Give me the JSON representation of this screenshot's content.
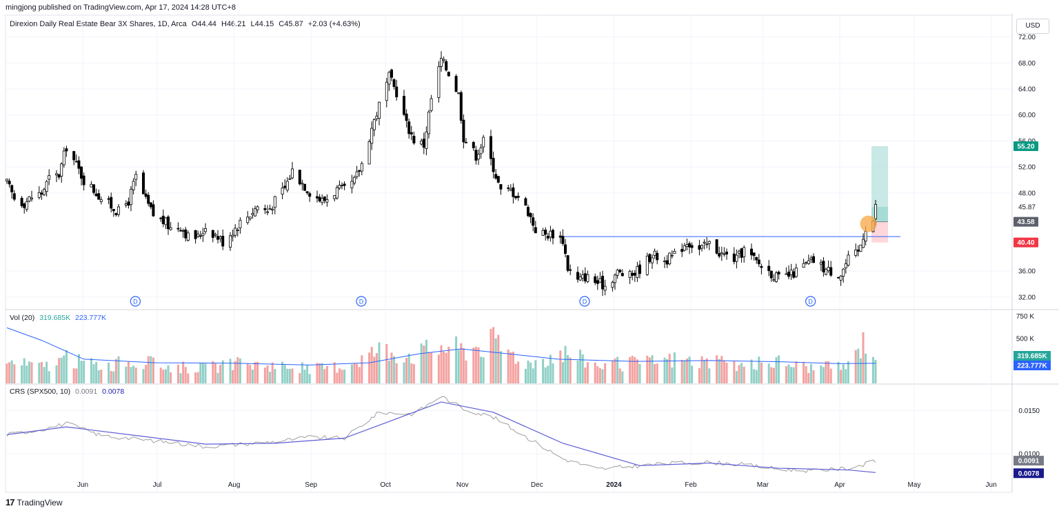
{
  "header": {
    "published": "mingjong published on TradingView.com, Apr 17, 2024 14:28 UTC+8"
  },
  "symbol_legend": {
    "name": "Direxion Daily Real Estate Bear 3X Shares, 1D, Arca",
    "open": "O44.44",
    "high": "H46.21",
    "low": "L44.15",
    "close": "C45.87",
    "change": "+2.03 (+4.63%)"
  },
  "currency_button": "USD",
  "volume_legend": {
    "label": "Vol (20)",
    "volume": "319.685K",
    "ma": "223.777K"
  },
  "crs_legend": {
    "label": "CRS (SPX500, 10)",
    "value": "0.0091",
    "ma": "0.0078"
  },
  "footer": {
    "brand": "TradingView"
  },
  "colors": {
    "up": "#26a69a",
    "down": "#ef5350",
    "candle": "#000000",
    "ma_line": "#2962ff",
    "target_zone": "#b2dfdb",
    "stop_zone": "#ffcdd2",
    "price_line": "#434651",
    "crs_line": "#9e9e9e",
    "crs_ma": "#5b5bd6"
  },
  "chart_data": [
    {
      "type": "candlestick",
      "title": "Direxion Daily Real Estate Bear 3X Shares, 1D, Arca",
      "x_ticks": [
        "Jun",
        "Jul",
        "Aug",
        "Sep",
        "Oct",
        "Nov",
        "Dec",
        "2024",
        "Feb",
        "Mar",
        "Apr",
        "May",
        "Jun"
      ],
      "y_ticks": [
        "72.00",
        "68.00",
        "64.00",
        "60.00",
        "56.00",
        "52.00",
        "48.00",
        "36.00",
        "32.00"
      ],
      "ylim": [
        30.5,
        72.8
      ],
      "close_path": [
        [
          "2023-05-02",
          49.5
        ],
        [
          "2023-05-05",
          47.2
        ],
        [
          "2023-05-09",
          46.5
        ],
        [
          "2023-05-12",
          47.4
        ],
        [
          "2023-05-16",
          48.0
        ],
        [
          "2023-05-19",
          50.2
        ],
        [
          "2023-05-23",
          50.8
        ],
        [
          "2023-05-26",
          55.2
        ],
        [
          "2023-05-30",
          52.3
        ],
        [
          "2023-06-02",
          50.0
        ],
        [
          "2023-06-06",
          48.5
        ],
        [
          "2023-06-09",
          47.2
        ],
        [
          "2023-06-13",
          46.0
        ],
        [
          "2023-06-16",
          45.1
        ],
        [
          "2023-06-20",
          46.8
        ],
        [
          "2023-06-23",
          50.5
        ],
        [
          "2023-06-27",
          46.8
        ],
        [
          "2023-06-30",
          44.6
        ],
        [
          "2023-07-05",
          43.4
        ],
        [
          "2023-07-07",
          42.6
        ],
        [
          "2023-07-11",
          43.0
        ],
        [
          "2023-07-14",
          41.3
        ],
        [
          "2023-07-18",
          41.2
        ],
        [
          "2023-07-21",
          42.8
        ],
        [
          "2023-07-25",
          41.6
        ],
        [
          "2023-07-28",
          40.5
        ],
        [
          "2023-08-01",
          42.2
        ],
        [
          "2023-08-04",
          43.5
        ],
        [
          "2023-08-08",
          44.8
        ],
        [
          "2023-08-11",
          46.0
        ],
        [
          "2023-08-15",
          45.2
        ],
        [
          "2023-08-18",
          46.8
        ],
        [
          "2023-08-22",
          48.8
        ],
        [
          "2023-08-25",
          51.5
        ],
        [
          "2023-08-29",
          49.6
        ],
        [
          "2023-09-01",
          48.2
        ],
        [
          "2023-09-06",
          46.8
        ],
        [
          "2023-09-08",
          47.2
        ],
        [
          "2023-09-12",
          48.5
        ],
        [
          "2023-09-15",
          48.4
        ],
        [
          "2023-09-19",
          49.8
        ],
        [
          "2023-09-22",
          52.5
        ],
        [
          "2023-09-26",
          58.0
        ],
        [
          "2023-09-29",
          61.5
        ],
        [
          "2023-10-03",
          65.8
        ],
        [
          "2023-10-06",
          63.5
        ],
        [
          "2023-10-10",
          58.6
        ],
        [
          "2023-10-13",
          56.2
        ],
        [
          "2023-10-17",
          55.4
        ],
        [
          "2023-10-20",
          62.5
        ],
        [
          "2023-10-24",
          68.5
        ],
        [
          "2023-10-27",
          66.5
        ],
        [
          "2023-10-31",
          63.2
        ],
        [
          "2023-11-02",
          56.6
        ],
        [
          "2023-11-07",
          53.8
        ],
        [
          "2023-11-10",
          56.0
        ],
        [
          "2023-11-14",
          52.0
        ],
        [
          "2023-11-17",
          48.2
        ],
        [
          "2023-11-21",
          48.4
        ],
        [
          "2023-11-24",
          47.5
        ],
        [
          "2023-11-28",
          45.2
        ],
        [
          "2023-12-01",
          42.4
        ],
        [
          "2023-12-05",
          41.6
        ],
        [
          "2023-12-08",
          41.8
        ],
        [
          "2023-12-12",
          40.8
        ],
        [
          "2023-12-14",
          36.5
        ],
        [
          "2023-12-18",
          34.5
        ],
        [
          "2023-12-21",
          35.2
        ],
        [
          "2023-12-26",
          34.2
        ],
        [
          "2023-12-29",
          33.8
        ],
        [
          "2024-01-03",
          35.8
        ],
        [
          "2024-01-08",
          35.2
        ],
        [
          "2024-01-12",
          36.4
        ],
        [
          "2024-01-17",
          38.6
        ],
        [
          "2024-01-22",
          37.6
        ],
        [
          "2024-01-26",
          38.4
        ],
        [
          "2024-01-31",
          40.6
        ],
        [
          "2024-02-05",
          39.3
        ],
        [
          "2024-02-09",
          40.2
        ],
        [
          "2024-02-14",
          38.6
        ],
        [
          "2024-02-20",
          37.8
        ],
        [
          "2024-02-23",
          39.3
        ],
        [
          "2024-02-28",
          37.4
        ],
        [
          "2024-03-04",
          36.0
        ],
        [
          "2024-03-08",
          34.8
        ],
        [
          "2024-03-13",
          35.4
        ],
        [
          "2024-03-18",
          36.8
        ],
        [
          "2024-03-22",
          37.6
        ],
        [
          "2024-03-27",
          36.2
        ],
        [
          "2024-04-02",
          35.6
        ],
        [
          "2024-04-05",
          37.8
        ],
        [
          "2024-04-09",
          38.8
        ],
        [
          "2024-04-12",
          42.8
        ],
        [
          "2024-04-15",
          43.8
        ],
        [
          "2024-04-16",
          45.87
        ]
      ],
      "dividend_markers": [
        "2023-06-20",
        "2023-09-19",
        "2023-12-18",
        "2024-03-18"
      ],
      "breakout_level": 41.3,
      "price_labels": {
        "target": "55.20",
        "last": "45.87",
        "entry": "43.58",
        "stop": "40.40"
      },
      "position": {
        "target": 55.2,
        "entry": 43.58,
        "stop": 40.4,
        "last": 45.87,
        "start": "2024-04-16",
        "end": "2024-04-16"
      }
    },
    {
      "type": "bar",
      "title": "Vol (20)",
      "y_ticks": [
        "750 K",
        "500 K"
      ],
      "ylim": [
        0,
        800000
      ],
      "volume_profile": [
        [
          "2023-05-02",
          260000,
          "up"
        ],
        [
          "2023-05-16",
          210000,
          "down"
        ],
        [
          "2023-05-26",
          300000,
          "up"
        ],
        [
          "2023-06-09",
          220000,
          "down"
        ],
        [
          "2023-06-23",
          270000,
          "up"
        ],
        [
          "2023-07-07",
          210000,
          "down"
        ],
        [
          "2023-07-21",
          190000,
          "up"
        ],
        [
          "2023-08-04",
          240000,
          "down"
        ],
        [
          "2023-08-18",
          230000,
          "up"
        ],
        [
          "2023-09-01",
          180000,
          "down"
        ],
        [
          "2023-09-15",
          220000,
          "up"
        ],
        [
          "2023-09-29",
          420000,
          "up"
        ],
        [
          "2023-10-13",
          360000,
          "down"
        ],
        [
          "2023-10-24",
          460000,
          "up"
        ],
        [
          "2023-11-02",
          420000,
          "down"
        ],
        [
          "2023-11-14",
          520000,
          "down"
        ],
        [
          "2023-11-28",
          250000,
          "down"
        ],
        [
          "2023-12-12",
          390000,
          "down"
        ],
        [
          "2023-12-26",
          230000,
          "up"
        ],
        [
          "2024-01-12",
          250000,
          "up"
        ],
        [
          "2024-01-26",
          300000,
          "down"
        ],
        [
          "2024-02-09",
          260000,
          "up"
        ],
        [
          "2024-02-23",
          220000,
          "down"
        ],
        [
          "2024-03-08",
          270000,
          "down"
        ],
        [
          "2024-03-22",
          190000,
          "up"
        ],
        [
          "2024-04-05",
          220000,
          "down"
        ],
        [
          "2024-04-12",
          560000,
          "up"
        ],
        [
          "2024-04-16",
          319685,
          "up"
        ]
      ],
      "ma_path": [
        [
          "2023-05-02",
          620000
        ],
        [
          "2023-05-16",
          480000
        ],
        [
          "2023-06-02",
          270000
        ],
        [
          "2023-07-01",
          230000
        ],
        [
          "2023-08-01",
          225000
        ],
        [
          "2023-09-01",
          205000
        ],
        [
          "2023-09-25",
          230000
        ],
        [
          "2023-10-15",
          330000
        ],
        [
          "2023-11-01",
          385000
        ],
        [
          "2023-11-20",
          330000
        ],
        [
          "2023-12-10",
          270000
        ],
        [
          "2024-01-10",
          245000
        ],
        [
          "2024-02-10",
          255000
        ],
        [
          "2024-03-10",
          240000
        ],
        [
          "2024-04-01",
          220000
        ],
        [
          "2024-04-16",
          223777
        ]
      ]
    },
    {
      "type": "line",
      "title": "CRS (SPX500, 10)",
      "y_ticks": [
        "0.0150",
        "0.0100"
      ],
      "ylim": [
        0.0055,
        0.018
      ],
      "series": [
        {
          "name": "CRS (SPX500, 10)",
          "points": [
            [
              "2023-05-02",
              0.0122
            ],
            [
              "2023-05-16",
              0.0128
            ],
            [
              "2023-05-26",
              0.0135
            ],
            [
              "2023-06-09",
              0.0121
            ],
            [
              "2023-06-23",
              0.0117
            ],
            [
              "2023-07-07",
              0.0113
            ],
            [
              "2023-07-21",
              0.0108
            ],
            [
              "2023-08-04",
              0.0111
            ],
            [
              "2023-08-18",
              0.0114
            ],
            [
              "2023-09-01",
              0.0119
            ],
            [
              "2023-09-15",
              0.0118
            ],
            [
              "2023-09-29",
              0.0148
            ],
            [
              "2023-10-13",
              0.0146
            ],
            [
              "2023-10-24",
              0.0167
            ],
            [
              "2023-11-02",
              0.0152
            ],
            [
              "2023-11-14",
              0.0142
            ],
            [
              "2023-11-28",
              0.0118
            ],
            [
              "2023-12-12",
              0.0094
            ],
            [
              "2023-12-26",
              0.0082
            ],
            [
              "2024-01-12",
              0.0086
            ],
            [
              "2024-01-26",
              0.0089
            ],
            [
              "2024-02-09",
              0.009
            ],
            [
              "2024-02-23",
              0.0087
            ],
            [
              "2024-03-08",
              0.0082
            ],
            [
              "2024-03-22",
              0.008
            ],
            [
              "2024-04-05",
              0.0083
            ],
            [
              "2024-04-16",
              0.0091
            ]
          ]
        },
        {
          "name": "MA",
          "points": [
            [
              "2023-05-02",
              0.0122
            ],
            [
              "2023-05-26",
              0.0131
            ],
            [
              "2023-06-23",
              0.0121
            ],
            [
              "2023-07-21",
              0.0111
            ],
            [
              "2023-08-18",
              0.0112
            ],
            [
              "2023-09-15",
              0.0118
            ],
            [
              "2023-09-29",
              0.0133
            ],
            [
              "2023-10-24",
              0.016
            ],
            [
              "2023-11-14",
              0.0148
            ],
            [
              "2023-12-12",
              0.0112
            ],
            [
              "2024-01-12",
              0.0086
            ],
            [
              "2024-02-09",
              0.0089
            ],
            [
              "2024-03-08",
              0.0083
            ],
            [
              "2024-04-05",
              0.0081
            ],
            [
              "2024-04-16",
              0.0078
            ]
          ]
        }
      ],
      "value_labels": {
        "value": "0.0091",
        "ma": "0.0078"
      }
    }
  ]
}
